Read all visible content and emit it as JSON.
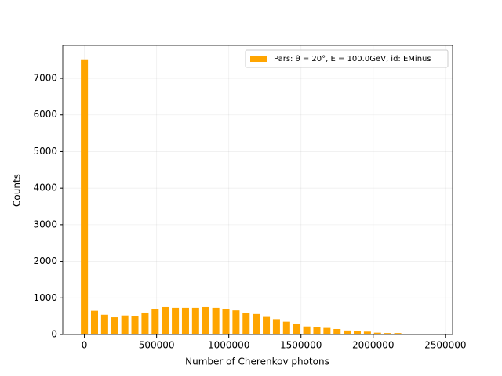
{
  "chart_data": {
    "type": "bar",
    "xlabel": "Number of Cherenkov photons",
    "ylabel": "Counts",
    "x": [
      0,
      70000,
      140000,
      210000,
      280000,
      350000,
      420000,
      490000,
      560000,
      630000,
      700000,
      770000,
      840000,
      910000,
      980000,
      1050000,
      1120000,
      1190000,
      1260000,
      1330000,
      1400000,
      1470000,
      1540000,
      1610000,
      1680000,
      1750000,
      1820000,
      1890000,
      1960000,
      2030000,
      2100000,
      2170000,
      2240000,
      2310000,
      2380000
    ],
    "series": [
      {
        "name": "Pars: θ = 20°, E = 100.0GeV, id: EMinus",
        "color": "#ffa500",
        "values": [
          7520,
          650,
          540,
          470,
          520,
          510,
          600,
          690,
          750,
          730,
          730,
          730,
          750,
          730,
          690,
          660,
          580,
          560,
          480,
          420,
          350,
          300,
          220,
          200,
          180,
          150,
          110,
          90,
          80,
          50,
          40,
          40,
          20,
          15,
          10
        ]
      }
    ],
    "xlim": [
      -150000,
      2550000
    ],
    "ylim": [
      0,
      7900
    ],
    "xticks": [
      0,
      500000,
      1000000,
      1500000,
      2000000,
      2500000
    ],
    "yticks": [
      0,
      1000,
      2000,
      3000,
      4000,
      5000,
      6000,
      7000
    ],
    "grid": true,
    "legend": "upper right"
  }
}
